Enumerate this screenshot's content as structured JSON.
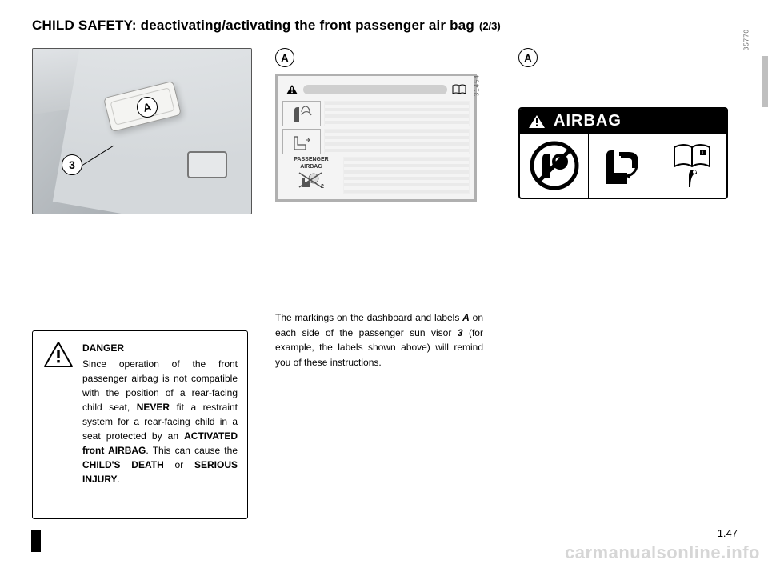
{
  "title": {
    "main": "CHILD SAFETY: deactivating/activating the front passenger air bag",
    "part": "(2/3)"
  },
  "figure_ids": {
    "fig1": "31466",
    "fig2": "31454",
    "fig3": "35770"
  },
  "callouts": {
    "A": "A",
    "three": "3"
  },
  "danger_box": {
    "title": "DANGER",
    "body_html": "Since operation of the front passenger airbag is not compatible with the position of a rear-facing child seat, <b>NEVER</b> fit a restraint system for a rear-facing child in a seat protected by an <b>ACTIVATED front AIRBAG</b>. This can cause the <b>CHILD'S DEATH</b> or <b>SERIOUS INJURY</b>."
  },
  "label_panel": {
    "pass_airbag_line1": "PASSENGER",
    "pass_airbag_line2": "AIRBAG"
  },
  "paragraph": {
    "html": "The markings on the dashboard and labels <span class='bi'>A</span> on each side of the passenger sun visor <span class='bi'>3</span> (for example, the labels shown above) will remind you of these instructions."
  },
  "airbag_header": "AIRBAG",
  "page_number": "1.47",
  "watermark": "carmanualsonline.info",
  "colors": {
    "text": "#000000",
    "panel_border": "#b0b0b0",
    "panel_bg": "#f4f4f4",
    "watermark": "#d6d6d6"
  }
}
